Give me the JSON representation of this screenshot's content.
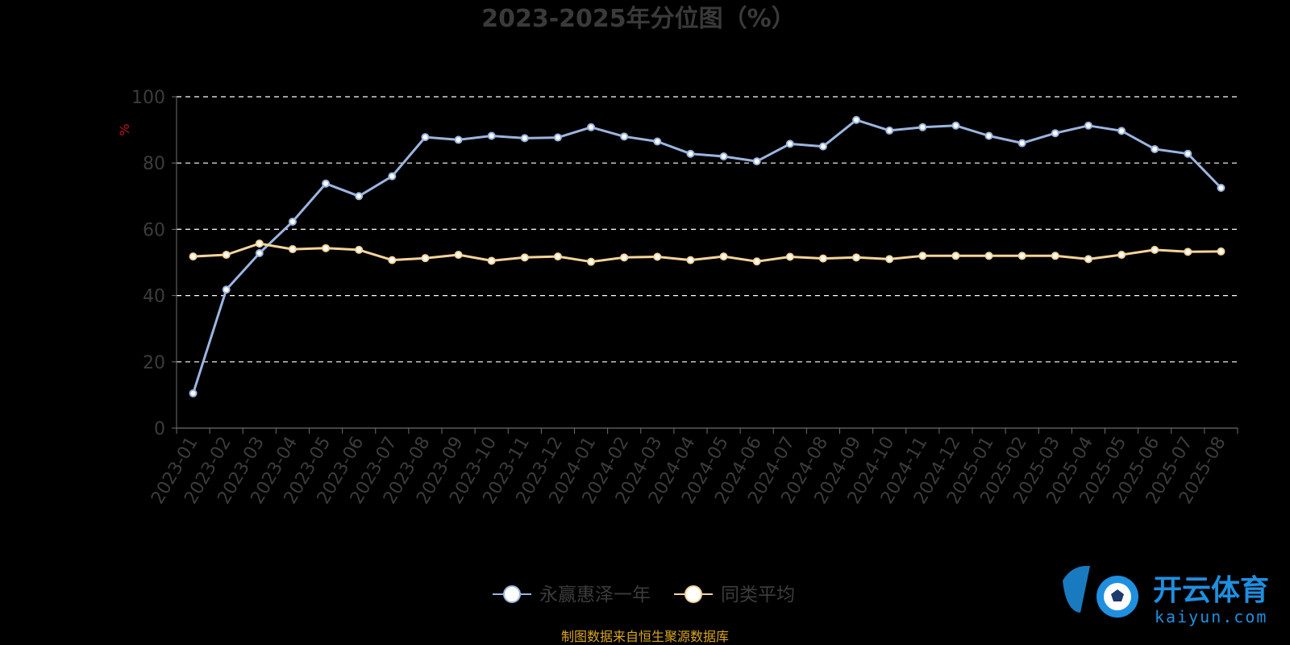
{
  "chart_data": {
    "type": "line",
    "title": "2023-2025年分位图（%）",
    "ylabel": "%",
    "ylim": [
      0,
      100
    ],
    "yticks": [
      0,
      20,
      40,
      60,
      80,
      100
    ],
    "grid": "horizontal dashed",
    "legend_position": "bottom-center",
    "categories": [
      "2023-01",
      "2023-02",
      "2023-03",
      "2023-04",
      "2023-05",
      "2023-06",
      "2023-07",
      "2023-08",
      "2023-09",
      "2023-10",
      "2023-11",
      "2023-12",
      "2024-01",
      "2024-02",
      "2024-03",
      "2024-04",
      "2024-05",
      "2024-06",
      "2024-07",
      "2024-08",
      "2024-09",
      "2024-10",
      "2024-11",
      "2024-12",
      "2025-01",
      "2025-02",
      "2025-03",
      "2025-04",
      "2025-05",
      "2025-06",
      "2025-07",
      "2025-08"
    ],
    "series": [
      {
        "name": "永赢惠泽一年",
        "color": "#9bb5e0",
        "values": [
          10.5,
          41.8,
          52.8,
          62.3,
          73.8,
          70.0,
          76.0,
          87.8,
          87.0,
          88.2,
          87.5,
          87.7,
          90.8,
          88.0,
          86.5,
          82.8,
          82.0,
          80.5,
          85.8,
          85.0,
          93.0,
          89.8,
          90.8,
          91.3,
          88.2,
          86.0,
          89.0,
          91.3,
          89.7,
          84.2,
          82.8,
          72.5
        ]
      },
      {
        "name": "同类平均",
        "color": "#f5d49a",
        "values": [
          51.8,
          52.3,
          55.7,
          54.0,
          54.3,
          53.8,
          50.7,
          51.3,
          52.3,
          50.5,
          51.5,
          51.8,
          50.2,
          51.5,
          51.7,
          50.7,
          51.8,
          50.3,
          51.7,
          51.2,
          51.5,
          51.0,
          52.0,
          52.0,
          52.0,
          52.0,
          52.0,
          51.0,
          52.3,
          53.8,
          53.2,
          53.3
        ]
      }
    ]
  },
  "source_note": "制图数据来自恒生聚源数据库",
  "watermark": {
    "brand": "开云体育",
    "domain": "kaiyun.com"
  },
  "colors": {
    "background": "#000000",
    "axis": "#6e6e6e",
    "grid": "#ffffff"
  }
}
